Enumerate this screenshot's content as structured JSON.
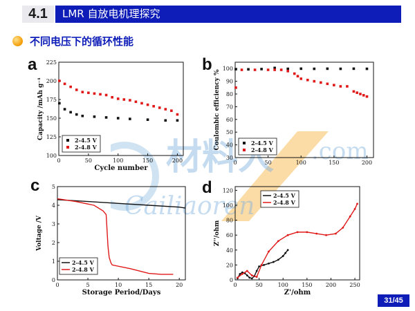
{
  "header": {
    "section_num": "4.1",
    "title": "LMR 自放电机理探究"
  },
  "subtitle": "不同电压下的循环性能",
  "panels": {
    "a": {
      "label": "a",
      "ylabel": "Capacity /mAh g⁻¹",
      "xlabel": "Cycle number",
      "yticks": [
        "100",
        "125",
        "150",
        "175",
        "200",
        "225"
      ],
      "xticks": [
        "0",
        "50",
        "100",
        "150",
        "200"
      ],
      "legend": [
        "2-4.5 V",
        "2-4.8 V"
      ]
    },
    "b": {
      "label": "b",
      "ylabel": "Coulombic efficiency %",
      "xlabel": "",
      "yticks": [
        "30",
        "40",
        "50",
        "60",
        "70",
        "80",
        "90",
        "100"
      ],
      "xticks": [
        "0",
        "50",
        "100",
        "150",
        "200"
      ],
      "legend": [
        "2-4.5 V",
        "2-4.8 V"
      ]
    },
    "c": {
      "label": "c",
      "ylabel": "Voltage /V",
      "xlabel": "Storage Period/Days",
      "yticks": [
        "0",
        "1",
        "2",
        "3",
        "4",
        "5"
      ],
      "xticks": [
        "0",
        "5",
        "10",
        "15",
        "20"
      ],
      "legend": [
        "2-4.5 V",
        "2-4.8 V"
      ]
    },
    "d": {
      "label": "d",
      "ylabel": "Z''/ohm",
      "xlabel": "Z'/ohm",
      "yticks": [
        "0",
        "20",
        "40",
        "60",
        "80",
        "100",
        "120"
      ],
      "xticks": [
        "0",
        "50",
        "100",
        "150",
        "200",
        "250"
      ],
      "legend": [
        "2-4.5 V",
        "2-4.8 V"
      ]
    }
  },
  "watermark": {
    "brand": "材料人",
    "domain": ".com",
    "text": "Cailiaoren"
  },
  "page_number": "31/45",
  "colors": {
    "blue": "#0e1db8",
    "red": "#e01818",
    "black": "#111111",
    "orange": "#f39a00"
  },
  "chart_data": [
    {
      "id": "a",
      "type": "scatter",
      "xlabel": "Cycle number",
      "ylabel": "Capacity /mAh g-1",
      "xlim": [
        0,
        210
      ],
      "ylim": [
        100,
        225
      ],
      "series": [
        {
          "name": "2-4.5 V",
          "x": [
            1,
            10,
            20,
            30,
            40,
            60,
            80,
            100,
            120,
            150,
            180,
            200
          ],
          "y": [
            170,
            162,
            158,
            155,
            153,
            152,
            151,
            150,
            149,
            148,
            147,
            147
          ]
        },
        {
          "name": "2-4.8 V",
          "x": [
            1,
            10,
            20,
            30,
            40,
            50,
            60,
            70,
            80,
            90,
            100,
            110,
            120,
            130,
            140,
            150,
            160,
            170,
            180,
            190,
            200
          ],
          "y": [
            200,
            196,
            192,
            188,
            185,
            184,
            183,
            182,
            181,
            178,
            176,
            175,
            174,
            172,
            170,
            168,
            166,
            164,
            162,
            160,
            155
          ]
        }
      ]
    },
    {
      "id": "b",
      "type": "scatter",
      "xlabel": "",
      "ylabel": "Coulombic efficiency %",
      "xlim": [
        0,
        210
      ],
      "ylim": [
        30,
        105
      ],
      "series": [
        {
          "name": "2-4.5 V",
          "x": [
            1,
            20,
            40,
            60,
            80,
            100,
            120,
            140,
            160,
            180,
            200
          ],
          "y": [
            99.5,
            99.4,
            99.6,
            100.5,
            99.8,
            99.9,
            99.8,
            99.9,
            99.8,
            99.9,
            99.8
          ]
        },
        {
          "name": "2-4.8 V",
          "x": [
            1,
            10,
            30,
            50,
            60,
            70,
            80,
            90,
            95,
            100,
            110,
            120,
            130,
            140,
            150,
            160,
            170,
            180,
            185,
            190,
            195,
            200
          ],
          "y": [
            85,
            99,
            99,
            99,
            99,
            99,
            98,
            96,
            94,
            92,
            91,
            90,
            89,
            88,
            87,
            86,
            86,
            82,
            81,
            80,
            79,
            78
          ]
        }
      ]
    },
    {
      "id": "c",
      "type": "line",
      "xlabel": "Storage Period/Days",
      "ylabel": "Voltage /V",
      "xlim": [
        0,
        21
      ],
      "ylim": [
        0,
        5
      ],
      "series": [
        {
          "name": "2-4.5 V",
          "x": [
            0,
            5,
            10,
            15,
            20,
            21
          ],
          "y": [
            4.3,
            4.2,
            4.1,
            4.0,
            3.9,
            3.85
          ]
        },
        {
          "name": "2-4.8 V",
          "x": [
            0,
            3,
            6,
            7.5,
            8,
            8.3,
            8.5,
            8.8,
            9,
            12,
            15,
            17,
            19
          ],
          "y": [
            4.35,
            4.2,
            4.0,
            3.7,
            3.5,
            1.8,
            1.2,
            0.9,
            0.8,
            0.6,
            0.35,
            0.3,
            0.3
          ]
        }
      ]
    },
    {
      "id": "d",
      "type": "scatter",
      "xlabel": "Z'/ohm",
      "ylabel": "Z''/ohm",
      "xlim": [
        0,
        260
      ],
      "ylim": [
        0,
        125
      ],
      "series": [
        {
          "name": "2-4.5 V",
          "x": [
            5,
            10,
            15,
            20,
            25,
            30,
            35,
            40,
            45,
            50,
            60,
            70,
            80,
            90,
            100,
            105,
            110
          ],
          "y": [
            2,
            8,
            10,
            9,
            6,
            3,
            2,
            5,
            12,
            18,
            20,
            22,
            24,
            27,
            32,
            36,
            40
          ]
        },
        {
          "name": "2-4.8 V",
          "x": [
            5,
            15,
            25,
            35,
            45,
            55,
            70,
            90,
            110,
            130,
            150,
            170,
            190,
            210,
            225,
            240,
            250,
            255
          ],
          "y": [
            3,
            8,
            12,
            6,
            4,
            20,
            38,
            52,
            60,
            64,
            64,
            62,
            60,
            62,
            70,
            85,
            95,
            102
          ]
        }
      ]
    }
  ]
}
